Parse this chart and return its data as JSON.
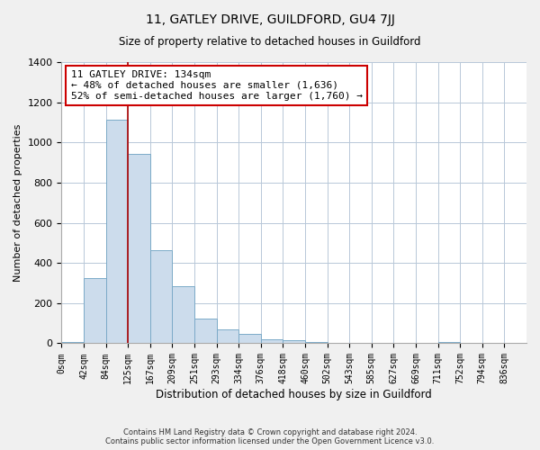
{
  "title_line1": "11, GATLEY DRIVE, GUILDFORD, GU4 7JJ",
  "title_line2": "Size of property relative to detached houses in Guildford",
  "xlabel": "Distribution of detached houses by size in Guildford",
  "ylabel": "Number of detached properties",
  "bar_labels": [
    "0sqm",
    "42sqm",
    "84sqm",
    "125sqm",
    "167sqm",
    "209sqm",
    "251sqm",
    "293sqm",
    "334sqm",
    "376sqm",
    "418sqm",
    "460sqm",
    "502sqm",
    "543sqm",
    "585sqm",
    "627sqm",
    "669sqm",
    "711sqm",
    "752sqm",
    "794sqm",
    "836sqm"
  ],
  "bar_values": [
    5,
    325,
    1115,
    945,
    465,
    285,
    125,
    70,
    45,
    20,
    15,
    5,
    0,
    0,
    0,
    0,
    0,
    5,
    0,
    0,
    0
  ],
  "bar_color": "#ccdcec",
  "bar_edge_color": "#7baac8",
  "annotation_text": "11 GATLEY DRIVE: 134sqm\n← 48% of detached houses are smaller (1,636)\n52% of semi-detached houses are larger (1,760) →",
  "annotation_box_color": "#ffffff",
  "annotation_box_edge_color": "#cc0000",
  "vline_color": "#aa0000",
  "ylim": [
    0,
    1400
  ],
  "yticks": [
    0,
    200,
    400,
    600,
    800,
    1000,
    1200,
    1400
  ],
  "footer_line1": "Contains HM Land Registry data © Crown copyright and database right 2024.",
  "footer_line2": "Contains public sector information licensed under the Open Government Licence v3.0.",
  "background_color": "#f0f0f0",
  "plot_background_color": "#ffffff",
  "grid_color": "#b8c8d8"
}
